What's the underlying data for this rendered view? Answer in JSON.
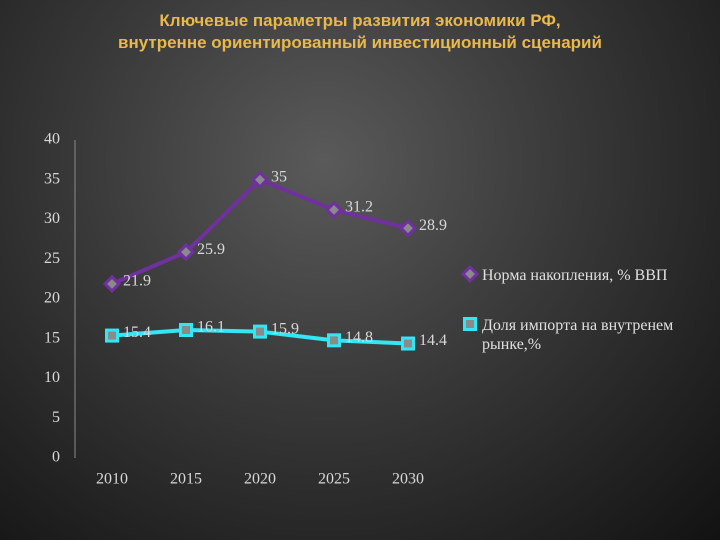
{
  "chart_data": {
    "type": "line",
    "title": "Ключевые параметры развития экономики РФ,\nвнутренне ориентированный  инвестиционный сценарий",
    "categories": [
      "2010",
      "2015",
      "2020",
      "2025",
      "2030"
    ],
    "series": [
      {
        "name": "Норма накопления, % ВВП",
        "color": "#7030a0",
        "marker": "diamond",
        "values": [
          21.9,
          25.9,
          35,
          31.2,
          28.9
        ]
      },
      {
        "name": "Доля импорта на внутренем рынке,%",
        "color": "#33e6f5",
        "marker": "square",
        "values": [
          15.4,
          16.1,
          15.9,
          14.8,
          14.4
        ]
      }
    ],
    "ylim": [
      0,
      40
    ],
    "yticks": [
      0,
      5,
      10,
      15,
      20,
      25,
      30,
      35,
      40
    ],
    "grid": false,
    "legend": "right"
  }
}
